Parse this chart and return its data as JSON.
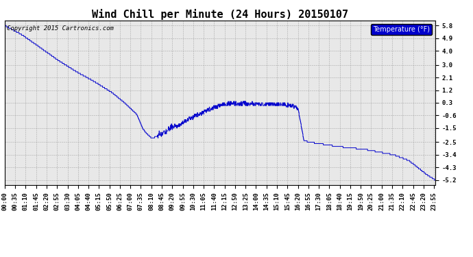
{
  "title": "Wind Chill per Minute (24 Hours) 20150107",
  "copyright_text": "Copyright 2015 Cartronics.com",
  "legend_label": "Temperature (°F)",
  "yticks": [
    5.8,
    4.9,
    4.0,
    3.0,
    2.1,
    1.2,
    0.3,
    -0.6,
    -1.5,
    -2.5,
    -3.4,
    -4.3,
    -5.2
  ],
  "line_color": "#0000cc",
  "background_color": "#ffffff",
  "plot_bg_color": "#e8e8e8",
  "grid_color": "#999999",
  "legend_bg": "#0000cc",
  "legend_text_color": "#ffffff",
  "title_fontsize": 11,
  "tick_fontsize": 6.5,
  "copyright_fontsize": 6.5,
  "tick_step_minutes": 35,
  "n_minutes": 1440,
  "figsize": [
    6.9,
    3.75
  ],
  "dpi": 100
}
